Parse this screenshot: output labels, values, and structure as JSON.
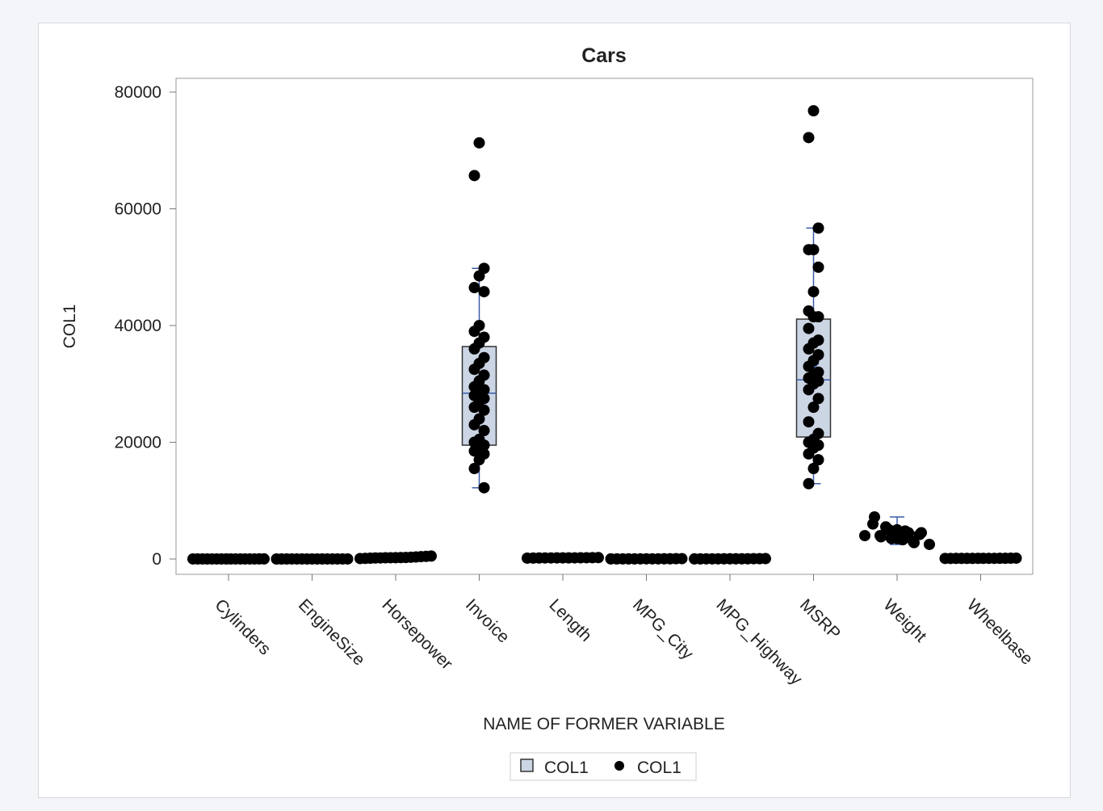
{
  "chart_data": {
    "type": "box",
    "title": "Cars",
    "xlabel": "NAME OF FORMER VARIABLE",
    "ylabel": "COL1",
    "ylim": [
      0,
      80000
    ],
    "yticks": [
      0,
      20000,
      40000,
      60000,
      80000
    ],
    "ytick_labels": [
      "0",
      "20000",
      "40000",
      "60000",
      "80000"
    ],
    "grid": false,
    "legend_placement": "bottom",
    "legend": [
      {
        "label": "COL1",
        "marker": "box"
      },
      {
        "label": "COL1",
        "marker": "dot"
      }
    ],
    "colors": {
      "box_fill": "#cbd5e4",
      "box_edge": "#333333",
      "whisker": "#3a5ba8",
      "points": "#000000"
    },
    "categories": [
      "Cylinders",
      "EngineSize",
      "Horsepower",
      "Invoice",
      "Length",
      "MPG_City",
      "MPG_Highway",
      "MSRP",
      "Weight",
      "Wheelbase"
    ],
    "boxes": [
      {
        "min": 3,
        "q1": 4,
        "median": 6,
        "q3": 6,
        "max": 12,
        "mean": 5.8
      },
      {
        "min": 1.3,
        "q1": 2.4,
        "median": 3.0,
        "q3": 3.9,
        "max": 8.3,
        "mean": 3.2
      },
      {
        "min": 73,
        "q1": 165,
        "median": 210,
        "q3": 255,
        "max": 500,
        "mean": 216
      },
      {
        "min": 12200,
        "q1": 19500,
        "median": 28400,
        "q3": 36400,
        "max": 49800,
        "mean": 30700
      },
      {
        "min": 143,
        "q1": 178,
        "median": 187,
        "q3": 194,
        "max": 238,
        "mean": 186
      },
      {
        "min": 10,
        "q1": 17,
        "median": 19,
        "q3": 21,
        "max": 60,
        "mean": 20
      },
      {
        "min": 12,
        "q1": 24,
        "median": 26,
        "q3": 29,
        "max": 66,
        "mean": 27
      },
      {
        "min": 12900,
        "q1": 20900,
        "median": 30700,
        "q3": 41100,
        "max": 56700,
        "mean": 33500
      },
      {
        "min": 2500,
        "q1": 3300,
        "median": 4000,
        "q3": 4600,
        "max": 7200,
        "mean": 4000
      },
      {
        "min": 89,
        "q1": 103,
        "median": 107,
        "q3": 112,
        "max": 144,
        "mean": 108
      }
    ],
    "points": [
      [
        3,
        4,
        4,
        4,
        4,
        5,
        6,
        6,
        6,
        6,
        6,
        8,
        8,
        8,
        10,
        12
      ],
      [
        1.3,
        1.6,
        2.0,
        2.4,
        2.5,
        3.0,
        3.0,
        3.5,
        3.9,
        4.2,
        4.6,
        5.0,
        5.7,
        6.0,
        8.3
      ],
      [
        73,
        100,
        130,
        165,
        180,
        200,
        210,
        225,
        240,
        255,
        300,
        340,
        400,
        450,
        500
      ],
      [
        71300,
        65700,
        49800,
        48500,
        46500,
        45800,
        40000,
        39000,
        38000,
        37000,
        36000,
        34500,
        33500,
        32500,
        31500,
        30500,
        29500,
        29000,
        28500,
        28000,
        27500,
        27000,
        26000,
        25500,
        24000,
        23000,
        22000,
        20500,
        20000,
        19500,
        19000,
        18500,
        18000,
        17000,
        15500,
        12200
      ],
      [
        143,
        155,
        165,
        175,
        178,
        182,
        187,
        190,
        194,
        200,
        210,
        220,
        238
      ],
      [
        10,
        13,
        15,
        17,
        18,
        19,
        20,
        21,
        24,
        28,
        35,
        46,
        60
      ],
      [
        12,
        18,
        22,
        24,
        25,
        26,
        27,
        29,
        31,
        36,
        44,
        51,
        66
      ],
      [
        76800,
        72200,
        56700,
        53000,
        53000,
        50000,
        45800,
        42500,
        41500,
        41500,
        39500,
        37500,
        37000,
        36000,
        35000,
        34000,
        33000,
        32000,
        31500,
        31000,
        30500,
        30000,
        29000,
        27500,
        26000,
        23500,
        21500,
        20500,
        20000,
        19500,
        19000,
        18000,
        17000,
        15500,
        12900
      ],
      [
        7200,
        6000,
        5500,
        5000,
        5000,
        4800,
        4500,
        4500,
        4200,
        4000,
        4000,
        3800,
        3500,
        3500,
        3300,
        3000,
        2800,
        2500
      ],
      [
        89,
        93,
        97,
        100,
        103,
        105,
        107,
        108,
        110,
        112,
        115,
        120,
        130,
        144
      ]
    ]
  }
}
